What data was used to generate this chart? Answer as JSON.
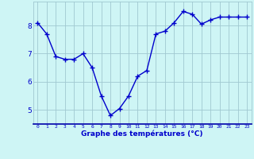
{
  "x": [
    0,
    1,
    2,
    3,
    4,
    5,
    6,
    7,
    8,
    9,
    10,
    11,
    12,
    13,
    14,
    15,
    16,
    17,
    18,
    19,
    20,
    21,
    22,
    23
  ],
  "y": [
    8.1,
    7.7,
    6.9,
    6.8,
    6.8,
    7.0,
    6.5,
    5.5,
    4.8,
    5.05,
    5.5,
    6.2,
    6.4,
    7.7,
    7.8,
    8.1,
    8.5,
    8.4,
    8.05,
    8.2,
    8.3,
    8.3,
    8.3,
    8.3
  ],
  "line_color": "#0000cc",
  "marker": "D",
  "marker_size": 2.0,
  "line_width": 1.0,
  "bg_color": "#cef5f5",
  "grid_color": "#a0c8d0",
  "xlabel": "Graphe des températures (°C)",
  "xlabel_color": "#0000cc",
  "tick_color": "#0000cc",
  "yticks": [
    5,
    6,
    7,
    8
  ],
  "ylim": [
    4.5,
    8.85
  ],
  "xlim": [
    -0.5,
    23.5
  ],
  "xtick_labels": [
    "0",
    "1",
    "2",
    "3",
    "4",
    "5",
    "6",
    "7",
    "8",
    "9",
    "10",
    "11",
    "12",
    "13",
    "14",
    "15",
    "16",
    "17",
    "18",
    "19",
    "20",
    "21",
    "22",
    "23"
  ]
}
